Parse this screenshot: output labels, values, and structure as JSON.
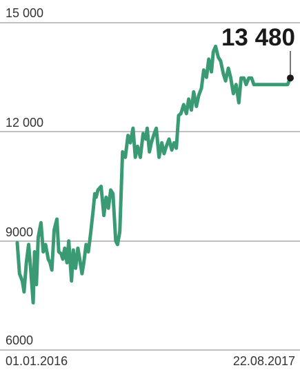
{
  "chart_data": {
    "type": "line",
    "title": "",
    "xlabel": "",
    "ylabel": "",
    "ylim": [
      6000,
      15000
    ],
    "yticks": [
      {
        "value": 15000,
        "label": "15 000"
      },
      {
        "value": 12000,
        "label": "12 000"
      },
      {
        "value": 9000,
        "label": "9000"
      },
      {
        "value": 6000,
        "label": "6000"
      }
    ],
    "xlim": [
      "2016-01-01",
      "2017-08-22"
    ],
    "x_tick_labels": [
      "01.01.2016",
      "22.08.2017"
    ],
    "grid": "horizontal",
    "line_color": "#3a9a73",
    "endpoint_label": "13 480",
    "series": [
      {
        "x": [
          "2016-01-01",
          "2016-01-06",
          "2016-01-12",
          "2016-01-16",
          "2016-01-21",
          "2016-01-26",
          "2016-01-30",
          "2016-02-05",
          "2016-02-08",
          "2016-02-12",
          "2016-02-16",
          "2016-02-22",
          "2016-02-27",
          "2016-03-03",
          "2016-03-09",
          "2016-03-13",
          "2016-03-17",
          "2016-03-22",
          "2016-03-28",
          "2016-04-01",
          "2016-04-06",
          "2016-04-10",
          "2016-04-14",
          "2016-04-19",
          "2016-04-23",
          "2016-04-29",
          "2016-05-03",
          "2016-05-08",
          "2016-05-13",
          "2016-05-17",
          "2016-05-22",
          "2016-05-26",
          "2016-05-31",
          "2016-06-05",
          "2016-06-10",
          "2016-06-16",
          "2016-06-19",
          "2016-06-22",
          "2016-06-26",
          "2016-07-03",
          "2016-07-09",
          "2016-07-14",
          "2016-07-19",
          "2016-07-24",
          "2016-07-29",
          "2016-08-04",
          "2016-08-08",
          "2016-08-13",
          "2016-08-19",
          "2016-08-25",
          "2016-08-31",
          "2016-09-05",
          "2016-09-11",
          "2016-09-16",
          "2016-09-21",
          "2016-09-27",
          "2016-10-03",
          "2016-10-09",
          "2016-10-12",
          "2016-10-17",
          "2016-10-21",
          "2016-10-26",
          "2016-11-01",
          "2016-11-07",
          "2016-11-13",
          "2016-11-18",
          "2016-11-23",
          "2016-11-29",
          "2016-12-05",
          "2016-12-10",
          "2016-12-15",
          "2016-12-20",
          "2016-12-25",
          "2016-12-31",
          "2017-01-06",
          "2017-01-11",
          "2017-01-17",
          "2017-01-22",
          "2017-01-28",
          "2017-02-02",
          "2017-02-08",
          "2017-02-13",
          "2017-02-19",
          "2017-02-24",
          "2017-03-02",
          "2017-03-06",
          "2017-03-11",
          "2017-03-17",
          "2017-03-22",
          "2017-03-28",
          "2017-04-02",
          "2017-04-08",
          "2017-04-13",
          "2017-04-19",
          "2017-04-25",
          "2017-05-01",
          "2017-05-06",
          "2017-05-12",
          "2017-05-17",
          "2017-05-23",
          "2017-05-29",
          "2017-06-03",
          "2017-06-09",
          "2017-06-14",
          "2017-06-20",
          "2017-06-26",
          "2017-07-01",
          "2017-07-06",
          "2017-07-11",
          "2017-07-17",
          "2017-07-22",
          "2017-07-27",
          "2017-08-01",
          "2017-08-06",
          "2017-08-11",
          "2017-08-16",
          "2017-08-22"
        ],
        "values": [
          8950,
          8100,
          7900,
          7600,
          8400,
          8900,
          8300,
          7300,
          8700,
          7800,
          9100,
          9500,
          8700,
          8900,
          8500,
          8400,
          8200,
          9300,
          9600,
          8700,
          8650,
          8500,
          8800,
          8400,
          9000,
          7900,
          8750,
          8250,
          8800,
          8500,
          8100,
          8400,
          8900,
          8700,
          9200,
          9900,
          10300,
          10200,
          10400,
          10500,
          9700,
          10200,
          9900,
          10400,
          10300,
          9000,
          8900,
          9250,
          11450,
          11300,
          11900,
          11700,
          12100,
          11300,
          11600,
          11300,
          11950,
          11800,
          12100,
          11450,
          11700,
          11900,
          12100,
          11300,
          11700,
          11400,
          11600,
          11800,
          11500,
          11700,
          11550,
          12450,
          12500,
          12750,
          12500,
          12900,
          12600,
          13100,
          12700,
          13000,
          13200,
          13700,
          13500,
          14000,
          13650,
          14200,
          14350,
          14050,
          13950,
          13600,
          13400,
          13750,
          13500,
          13050,
          13300,
          12800,
          13480,
          13480,
          13300,
          13480,
          13480,
          13300,
          13300,
          13300,
          13300,
          13300,
          13300,
          13300,
          13300,
          13300,
          13300,
          13300,
          13300,
          13300,
          13300,
          13300,
          13480
        ],
        "note": ""
      }
    ]
  }
}
